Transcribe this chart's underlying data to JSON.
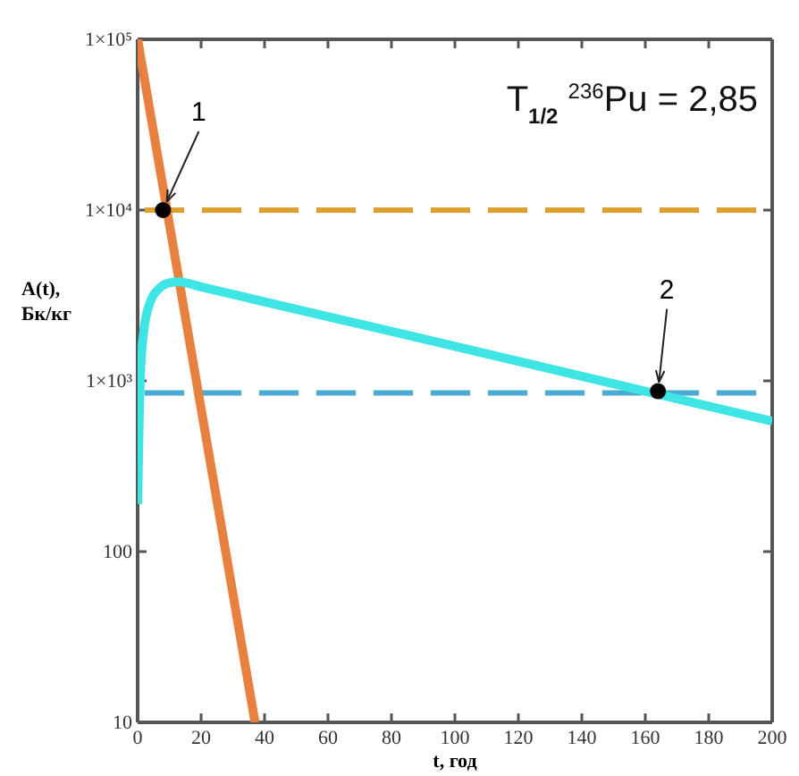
{
  "chart_data": {
    "type": "line",
    "title": "T$_{1/2}$ $^{236}$Pu = 2,85",
    "xlabel": "t, год",
    "ylabel": "A(t), Бк/кг",
    "log": "y",
    "grid": false,
    "line_style": "solid",
    "marker": "none",
    "xlim": [
      0,
      200
    ],
    "xticks": [
      0,
      20,
      40,
      60,
      80,
      100,
      120,
      140,
      160,
      180,
      200
    ],
    "ylim": [
      10,
      100000
    ],
    "yticks": [
      {
        "value": 100000,
        "label": "1×10⁵"
      },
      {
        "value": 10000,
        "label": "1×10⁴"
      },
      {
        "value": 1000,
        "label": "1×10³"
      },
      100,
      10
    ],
    "series": [
      {
        "color": "#e8803f",
        "x": [
          0,
          37
        ],
        "values": [
          100000,
          10
        ]
      },
      {
        "color": "#3fe4e4",
        "x": [
          0,
          0.5,
          1,
          2,
          4,
          7,
          10,
          13,
          20,
          40,
          80,
          120,
          160,
          200
        ],
        "values": [
          190,
          600,
          1200,
          2000,
          2900,
          3500,
          3750,
          3800,
          3550,
          2900,
          1950,
          1300,
          870,
          580
        ]
      }
    ],
    "ref_lines": [
      {
        "axis": "y",
        "value": 10000,
        "color": "#e0a030",
        "line_style": "dashed"
      },
      {
        "axis": "y",
        "value": 850,
        "color": "#4aaad2",
        "line_style": "dashed"
      }
    ],
    "annotations": [
      {
        "text": "1",
        "x": 8,
        "y": 10000
      },
      {
        "text": "2",
        "x": 164,
        "y": 870
      }
    ]
  }
}
